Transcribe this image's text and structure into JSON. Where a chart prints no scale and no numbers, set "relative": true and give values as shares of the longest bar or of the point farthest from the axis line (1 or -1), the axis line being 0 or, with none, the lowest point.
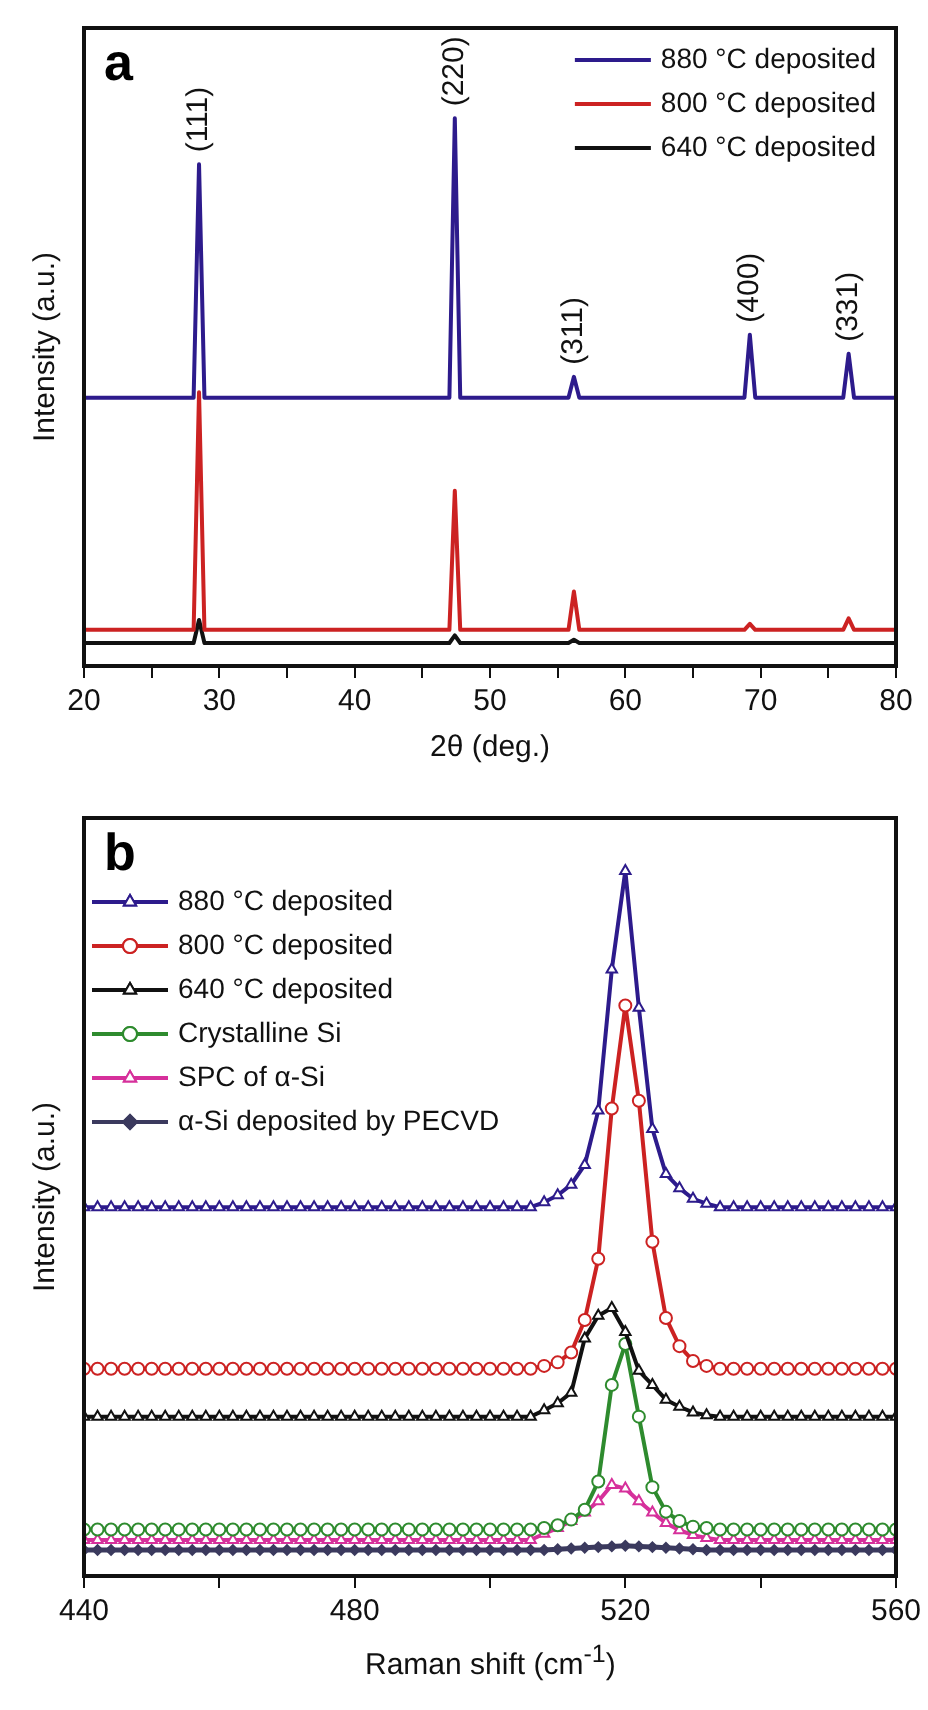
{
  "chart_data": [
    {
      "type": "line",
      "title": "a",
      "xlabel": "2θ (deg.)",
      "ylabel": "Intensity (a.u.)",
      "relative": true,
      "xlim": [
        20,
        80
      ],
      "xticks": [
        20,
        {
          "value": 25,
          "label": null
        },
        30,
        {
          "value": 35,
          "label": null
        },
        40,
        {
          "value": 45,
          "label": null
        },
        50,
        {
          "value": 55,
          "label": null
        },
        60,
        {
          "value": 65,
          "label": null
        },
        70,
        {
          "value": 75,
          "label": null
        },
        80
      ],
      "grid": false,
      "legend": "top right",
      "series": [
        {
          "name": "880 °C deposited",
          "color": "#2d1b8c",
          "x": [
            20,
            28.1,
            28.5,
            28.9,
            47.0,
            47.4,
            47.8,
            55.8,
            56.2,
            56.6,
            68.8,
            69.2,
            69.6,
            76.1,
            76.5,
            76.9,
            80
          ],
          "values": [
            0.49,
            0.49,
            0.916,
            0.49,
            0.49,
            1,
            0.49,
            0.49,
            0.528,
            0.49,
            0.49,
            0.605,
            0.49,
            0.49,
            0.57,
            0.49,
            0.49
          ]
        },
        {
          "name": "800 °C deposited",
          "color": "#cc2222",
          "x": [
            20,
            28.1,
            28.5,
            28.9,
            47.0,
            47.4,
            47.8,
            55.8,
            56.2,
            56.6,
            68.8,
            69.2,
            69.6,
            76.1,
            76.5,
            76.9,
            80
          ],
          "values": [
            0.066,
            0.066,
            0.5,
            0.066,
            0.066,
            0.32,
            0.066,
            0.066,
            0.136,
            0.066,
            0.066,
            0.077,
            0.066,
            0.066,
            0.087,
            0.066,
            0.066
          ]
        },
        {
          "name": "640 °C deposited",
          "color": "#111111",
          "x": [
            20,
            28.1,
            28.5,
            28.9,
            47.0,
            47.4,
            47.8,
            55.8,
            56.2,
            56.6,
            80
          ],
          "values": [
            0.042,
            0.042,
            0.084,
            0.042,
            0.042,
            0.056,
            0.042,
            0.042,
            0.048,
            0.042,
            0.042
          ]
        }
      ],
      "annotations": [
        {
          "text": "(111)",
          "x": 28.5,
          "y": 0.916
        },
        {
          "text": "(220)",
          "x": 47.4,
          "y": 1
        },
        {
          "text": "(311)",
          "x": 56.2,
          "y": 0.528
        },
        {
          "text": "(400)",
          "x": 69.2,
          "y": 0.605
        },
        {
          "text": "(331)",
          "x": 76.5,
          "y": 0.57
        }
      ]
    },
    {
      "type": "line",
      "title": "b",
      "xlabel": "Raman shift (cm$^{-1}$)",
      "ylabel": "Intensity (a.u.)",
      "relative": true,
      "xlim": [
        440,
        560
      ],
      "xticks": [
        440,
        {
          "value": 460,
          "label": null
        },
        480,
        {
          "value": 500,
          "label": null
        },
        520,
        {
          "value": 540,
          "label": null
        },
        560
      ],
      "grid": false,
      "legend": "top left",
      "x": [
        440,
        442,
        444,
        446,
        448,
        450,
        452,
        454,
        456,
        458,
        460,
        462,
        464,
        466,
        468,
        470,
        472,
        474,
        476,
        478,
        480,
        482,
        484,
        486,
        488,
        490,
        492,
        494,
        496,
        498,
        500,
        502,
        504,
        506,
        508,
        510,
        512,
        514,
        516,
        518,
        520,
        522,
        524,
        526,
        528,
        530,
        532,
        534,
        536,
        538,
        540,
        542,
        544,
        546,
        548,
        550,
        552,
        554,
        556,
        558,
        560
      ],
      "series": [
        {
          "name": "880 °C deposited",
          "color": "#2d1b8c",
          "marker": "triangle",
          "values": [
            0.523,
            0.523,
            0.523,
            0.523,
            0.523,
            0.523,
            0.523,
            0.523,
            0.523,
            0.523,
            0.523,
            0.523,
            0.523,
            0.523,
            0.523,
            0.523,
            0.523,
            0.523,
            0.523,
            0.523,
            0.523,
            0.523,
            0.523,
            0.523,
            0.523,
            0.523,
            0.523,
            0.523,
            0.523,
            0.523,
            0.523,
            0.523,
            0.523,
            0.523,
            0.53,
            0.54,
            0.555,
            0.583,
            0.66,
            0.86,
            1,
            0.806,
            0.634,
            0.57,
            0.55,
            0.535,
            0.528,
            0.523,
            0.523,
            0.523,
            0.523,
            0.523,
            0.523,
            0.523,
            0.523,
            0.523,
            0.523,
            0.523,
            0.523,
            0.523,
            0.523
          ]
        },
        {
          "name": "800 °C deposited",
          "color": "#cc2222",
          "marker": "circle",
          "values": [
            0.294,
            0.294,
            0.294,
            0.294,
            0.294,
            0.294,
            0.294,
            0.294,
            0.294,
            0.294,
            0.294,
            0.294,
            0.294,
            0.294,
            0.294,
            0.294,
            0.294,
            0.294,
            0.294,
            0.294,
            0.294,
            0.294,
            0.294,
            0.294,
            0.294,
            0.294,
            0.294,
            0.294,
            0.294,
            0.294,
            0.294,
            0.294,
            0.294,
            0.294,
            0.298,
            0.303,
            0.317,
            0.363,
            0.45,
            0.663,
            0.809,
            0.674,
            0.474,
            0.366,
            0.326,
            0.305,
            0.298,
            0.294,
            0.294,
            0.294,
            0.294,
            0.294,
            0.294,
            0.294,
            0.294,
            0.294,
            0.294,
            0.294,
            0.294,
            0.294,
            0.294
          ]
        },
        {
          "name": "640 °C deposited",
          "color": "#111111",
          "marker": "triangle",
          "values": [
            0.226,
            0.226,
            0.226,
            0.226,
            0.226,
            0.226,
            0.226,
            0.226,
            0.226,
            0.226,
            0.226,
            0.226,
            0.226,
            0.226,
            0.226,
            0.226,
            0.226,
            0.226,
            0.226,
            0.226,
            0.226,
            0.226,
            0.226,
            0.226,
            0.226,
            0.226,
            0.226,
            0.226,
            0.226,
            0.226,
            0.226,
            0.226,
            0.226,
            0.226,
            0.235,
            0.245,
            0.26,
            0.337,
            0.369,
            0.38,
            0.346,
            0.291,
            0.271,
            0.25,
            0.24,
            0.232,
            0.228,
            0.226,
            0.226,
            0.226,
            0.226,
            0.226,
            0.226,
            0.226,
            0.226,
            0.226,
            0.226,
            0.226,
            0.226,
            0.226,
            0.226
          ]
        },
        {
          "name": "Crystalline Si",
          "color": "#2e8b2e",
          "marker": "circle",
          "values": [
            0.066,
            0.066,
            0.066,
            0.066,
            0.066,
            0.066,
            0.066,
            0.066,
            0.066,
            0.066,
            0.066,
            0.066,
            0.066,
            0.066,
            0.066,
            0.066,
            0.066,
            0.066,
            0.066,
            0.066,
            0.066,
            0.066,
            0.066,
            0.066,
            0.066,
            0.066,
            0.066,
            0.066,
            0.066,
            0.066,
            0.066,
            0.066,
            0.066,
            0.066,
            0.068,
            0.072,
            0.08,
            0.094,
            0.134,
            0.271,
            0.329,
            0.226,
            0.126,
            0.091,
            0.078,
            0.07,
            0.068,
            0.066,
            0.066,
            0.066,
            0.066,
            0.066,
            0.066,
            0.066,
            0.066,
            0.066,
            0.066,
            0.066,
            0.066,
            0.066,
            0.066
          ]
        },
        {
          "name": "SPC of α-Si",
          "color": "#d6309b",
          "marker": "triangle",
          "values": [
            0.051,
            0.051,
            0.051,
            0.051,
            0.051,
            0.051,
            0.051,
            0.051,
            0.051,
            0.051,
            0.051,
            0.051,
            0.051,
            0.051,
            0.051,
            0.051,
            0.051,
            0.051,
            0.051,
            0.051,
            0.051,
            0.051,
            0.051,
            0.051,
            0.051,
            0.051,
            0.051,
            0.051,
            0.051,
            0.051,
            0.051,
            0.051,
            0.051,
            0.051,
            0.06,
            0.068,
            0.078,
            0.09,
            0.106,
            0.129,
            0.124,
            0.106,
            0.09,
            0.075,
            0.065,
            0.058,
            0.054,
            0.051,
            0.051,
            0.051,
            0.051,
            0.051,
            0.051,
            0.051,
            0.051,
            0.051,
            0.051,
            0.051,
            0.051,
            0.051,
            0.051
          ]
        },
        {
          "name": "α-Si deposited by PECVD",
          "color": "#3b3a5e",
          "marker": "diamond",
          "values": [
            0.037,
            0.037,
            0.037,
            0.037,
            0.037,
            0.037,
            0.037,
            0.037,
            0.037,
            0.037,
            0.037,
            0.037,
            0.037,
            0.037,
            0.037,
            0.037,
            0.037,
            0.037,
            0.037,
            0.037,
            0.037,
            0.037,
            0.037,
            0.037,
            0.037,
            0.037,
            0.037,
            0.037,
            0.037,
            0.037,
            0.037,
            0.037,
            0.037,
            0.037,
            0.037,
            0.038,
            0.039,
            0.04,
            0.041,
            0.042,
            0.043,
            0.042,
            0.041,
            0.04,
            0.039,
            0.038,
            0.037,
            0.037,
            0.037,
            0.037,
            0.037,
            0.037,
            0.037,
            0.037,
            0.037,
            0.037,
            0.037,
            0.037,
            0.037,
            0.037,
            0.037
          ]
        }
      ]
    }
  ]
}
